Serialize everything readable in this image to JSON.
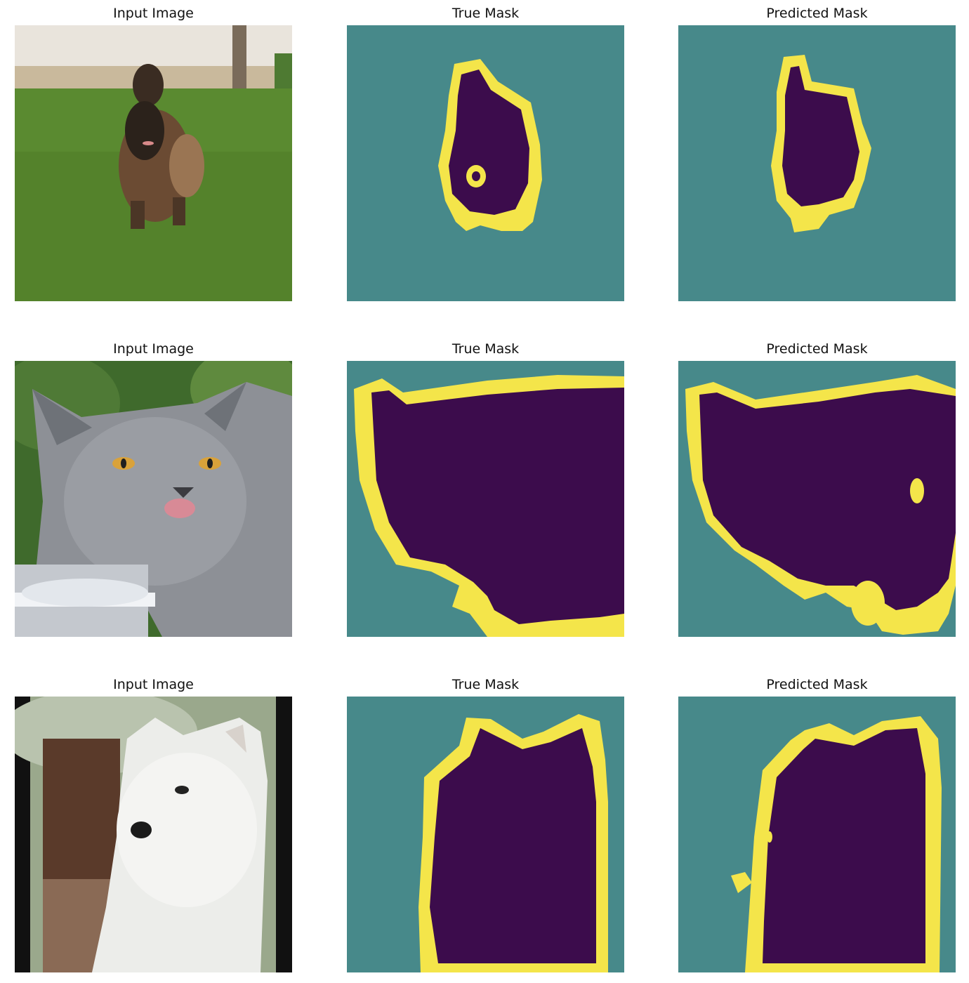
{
  "figure": {
    "rows": [
      {
        "titles": [
          "Input Image",
          "True Mask",
          "Predicted Mask"
        ],
        "subject": "dog running on grass"
      },
      {
        "titles": [
          "Input Image",
          "True Mask",
          "Predicted Mask"
        ],
        "subject": "grey cat licking lips"
      },
      {
        "titles": [
          "Input Image",
          "True Mask",
          "Predicted Mask"
        ],
        "subject": "white fluffy dog"
      }
    ]
  },
  "colors": {
    "background_class": "#47898a",
    "foreground_class": "#3c0c4c",
    "border_class": "#f4e54a"
  }
}
